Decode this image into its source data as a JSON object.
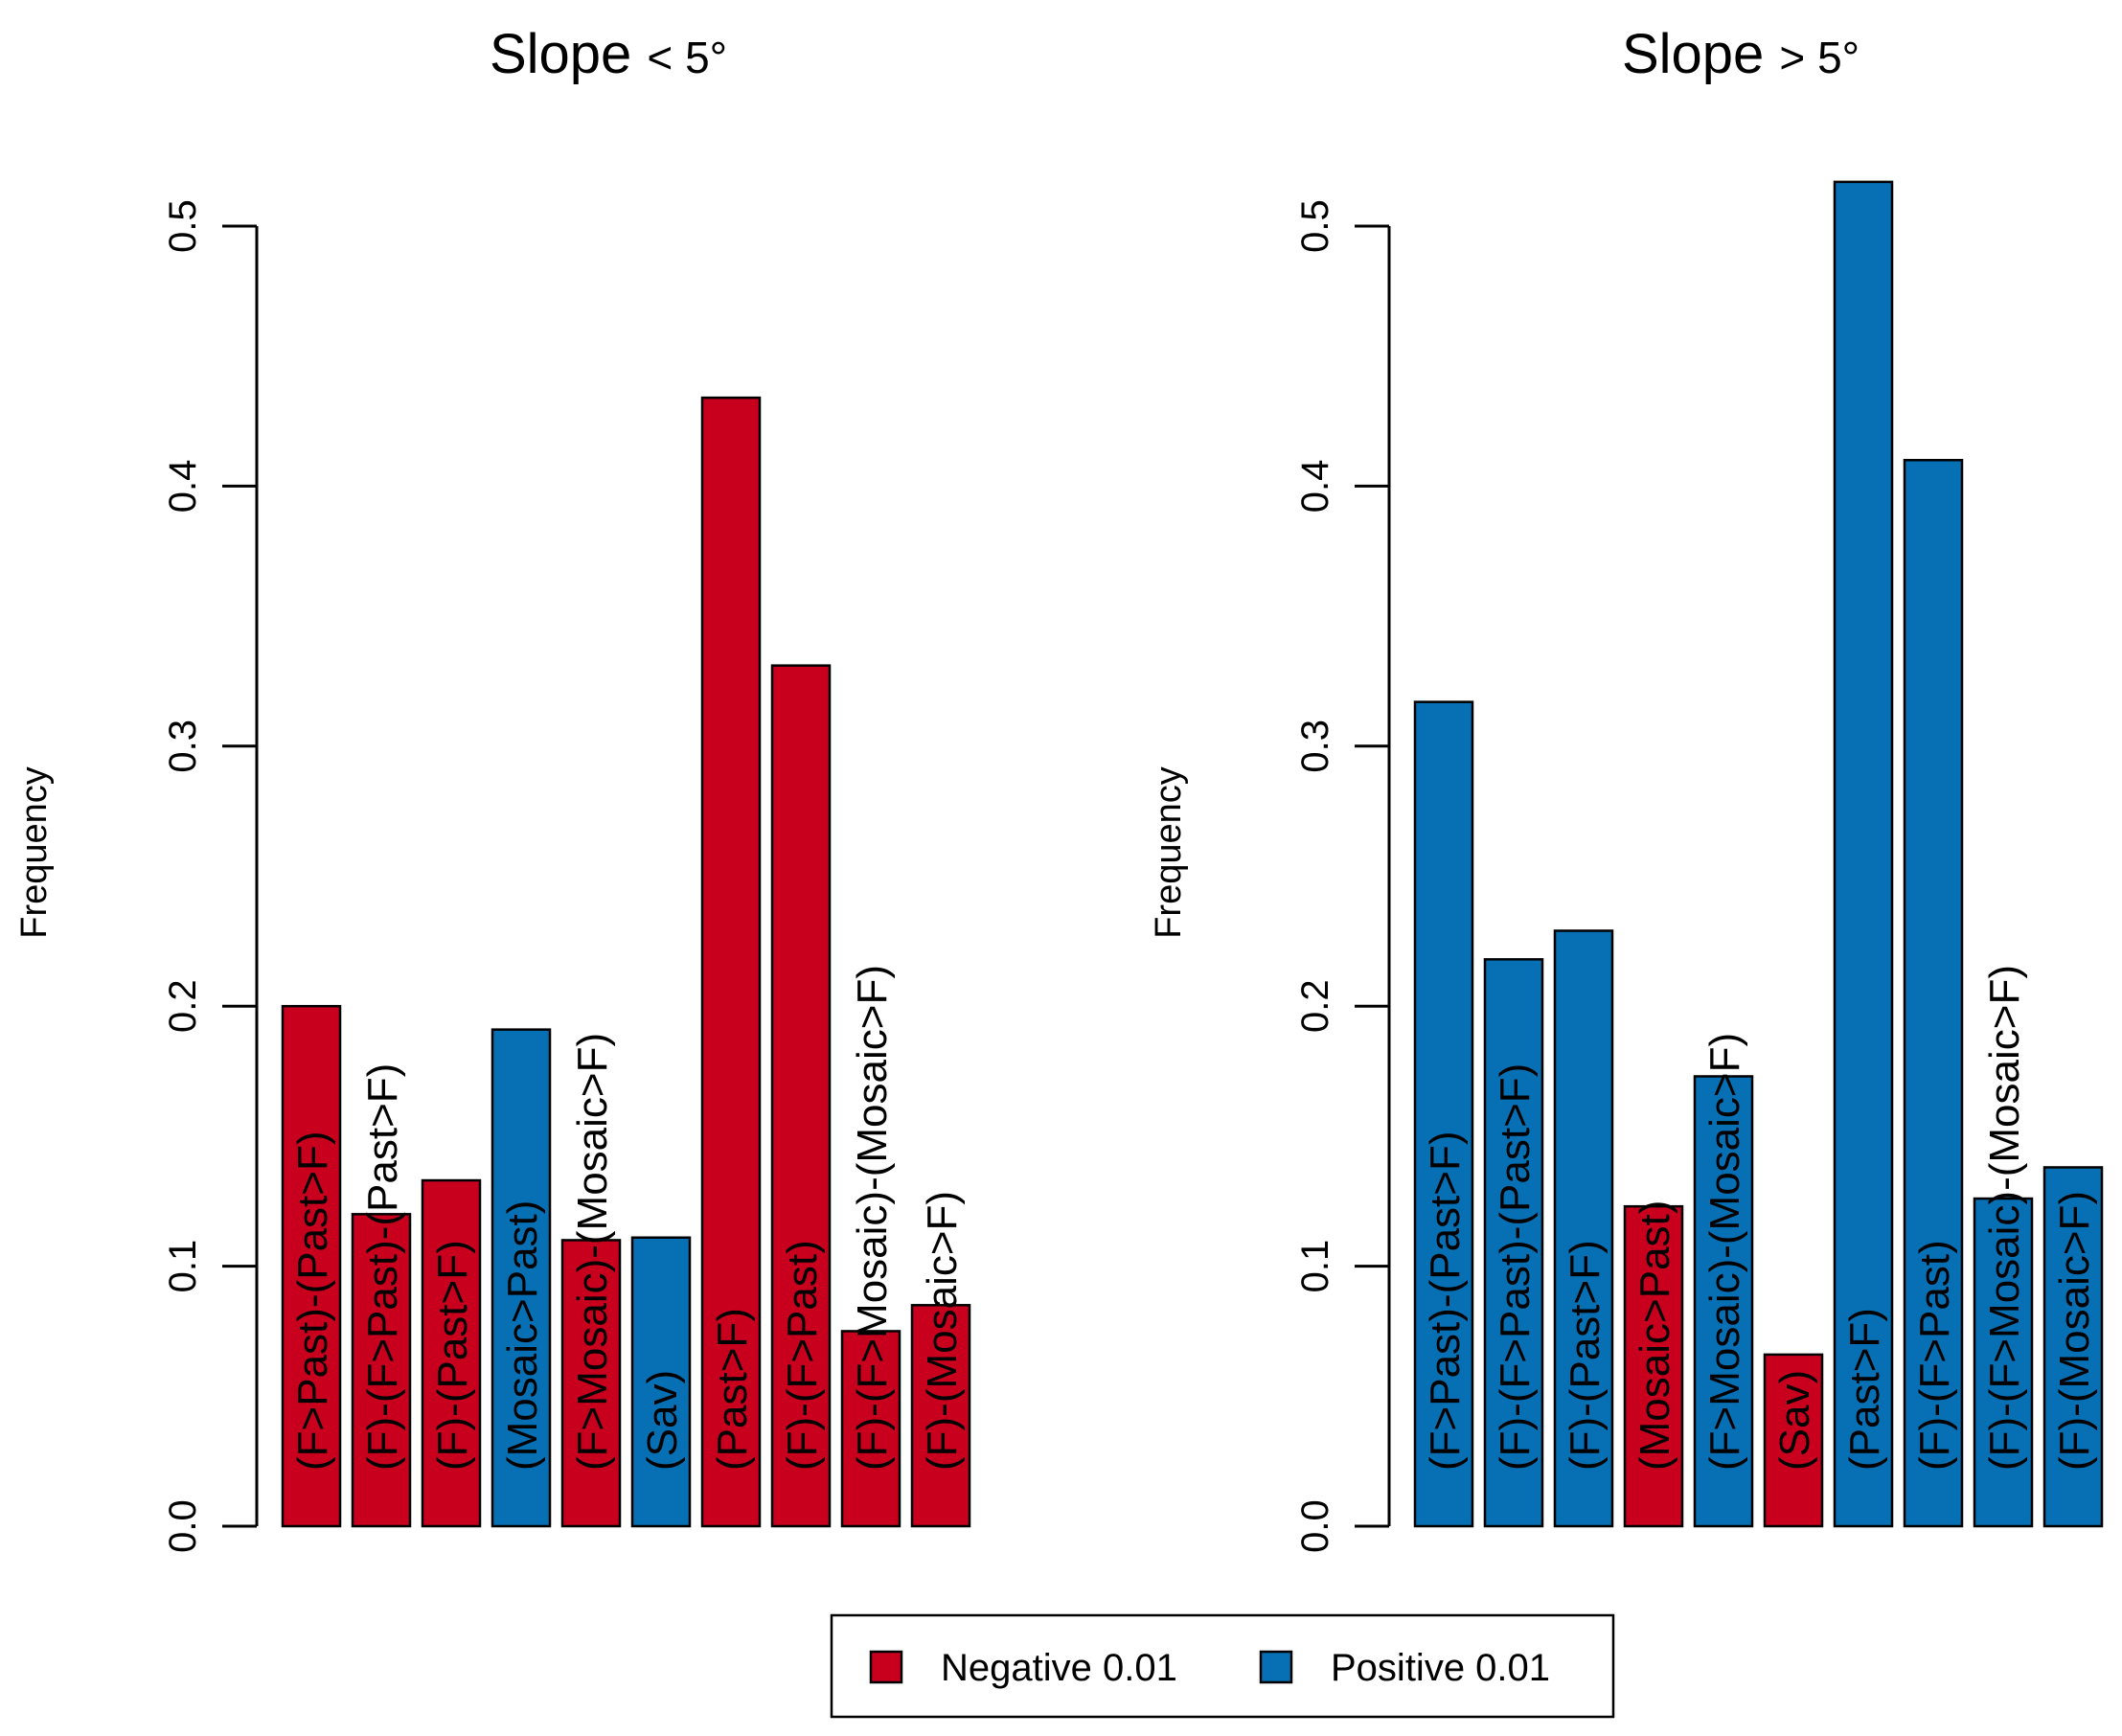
{
  "colors": {
    "negative": "#c8001e",
    "positive": "#0770b4",
    "stroke": "#000000"
  },
  "legend": {
    "items": [
      {
        "label": "Negative 0.01",
        "key": "negative"
      },
      {
        "label": "Positive 0.01",
        "key": "positive"
      }
    ]
  },
  "chart_data": [
    {
      "type": "bar",
      "title_main": "Slope",
      "title_symbol": "< 5°",
      "ylabel": "Frequency",
      "ylim": [
        0,
        0.5
      ],
      "yticks": [
        0.0,
        0.1,
        0.2,
        0.3,
        0.4,
        0.5
      ],
      "ytick_labels": [
        "0.0",
        "0.1",
        "0.2",
        "0.3",
        "0.4",
        "0.5"
      ],
      "categories": [
        "(F>Past)-(Past>F)",
        "(F)-(F>Past)-(Past>F)",
        "(F)-(Past>F)",
        "(Mosaic>Past)",
        "(F>Mosaic)-(Mosaic>F)",
        "(Sav)",
        "(Past>F)",
        "(F)-(F>Past)",
        "(F)-(F>Mosaic)-(Mosaic>F)",
        "(F)-(Mosaic>F)"
      ],
      "values": [
        0.2,
        0.12,
        0.133,
        0.191,
        0.11,
        0.111,
        0.434,
        0.331,
        0.075,
        0.085
      ],
      "signs": [
        "negative",
        "negative",
        "negative",
        "positive",
        "negative",
        "positive",
        "negative",
        "negative",
        "negative",
        "negative"
      ]
    },
    {
      "type": "bar",
      "title_main": "Slope",
      "title_symbol": "> 5°",
      "ylabel": "Frequency",
      "ylim": [
        0,
        0.5
      ],
      "yticks": [
        0.0,
        0.1,
        0.2,
        0.3,
        0.4,
        0.5
      ],
      "ytick_labels": [
        "0.0",
        "0.1",
        "0.2",
        "0.3",
        "0.4",
        "0.5"
      ],
      "categories": [
        "(F>Past)-(Past>F)",
        "(F)-(F>Past)-(Past>F)",
        "(F)-(Past>F)",
        "(Mosaic>Past)",
        "(F>Mosaic)-(Mosaic>F)",
        "(Sav)",
        "(Past>F)",
        "(F)-(F>Past)",
        "(F)-(F>Mosaic)-(Mosaic>F)",
        "(F)-(Mosaic>F)"
      ],
      "values": [
        0.317,
        0.218,
        0.229,
        0.123,
        0.173,
        0.066,
        0.517,
        0.41,
        0.126,
        0.138
      ],
      "signs": [
        "positive",
        "positive",
        "positive",
        "negative",
        "positive",
        "negative",
        "positive",
        "positive",
        "positive",
        "positive"
      ]
    }
  ]
}
